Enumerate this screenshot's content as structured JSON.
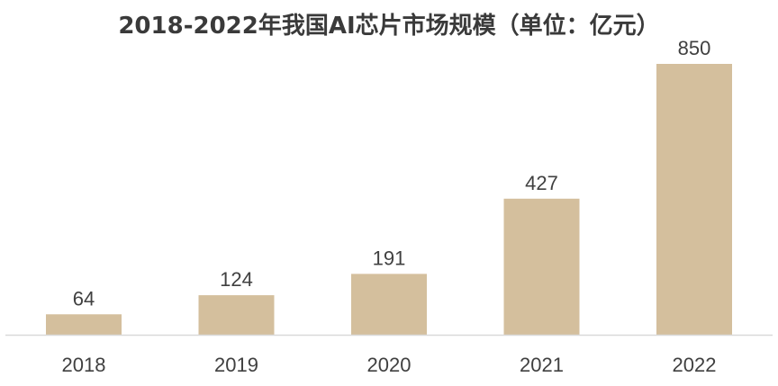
{
  "chart_data": {
    "type": "bar",
    "title": "2018-2022年我国AI芯片市场规模（单位：亿元）",
    "categories": [
      "2018",
      "2019",
      "2020",
      "2021",
      "2022"
    ],
    "values": [
      64,
      124,
      191,
      427,
      850
    ],
    "value_labels": [
      "64",
      "124",
      "191",
      "427",
      "850"
    ],
    "xlabel": "",
    "ylabel": "",
    "ylim": [
      0,
      850
    ],
    "grid": false,
    "legend": "none",
    "bar_color": "#d4bf9d",
    "axis_color": "#d9d9d9",
    "text_color": "#404040"
  }
}
